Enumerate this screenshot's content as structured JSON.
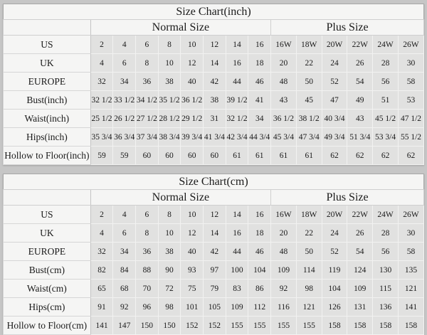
{
  "page": {
    "background": "#c6c6c6",
    "table_background": "#f5f5f4",
    "cell_background": "#e1e1e0"
  },
  "chart_data": [
    {
      "type": "table",
      "title": "Size Chart(inch)",
      "groups": [
        {
          "label": "Normal Size",
          "span": 8
        },
        {
          "label": "Plus Size",
          "span": 6
        }
      ],
      "rows": [
        {
          "label": "US",
          "values": [
            "2",
            "4",
            "6",
            "8",
            "10",
            "12",
            "14",
            "16",
            "16W",
            "18W",
            "20W",
            "22W",
            "24W",
            "26W"
          ]
        },
        {
          "label": "UK",
          "values": [
            "4",
            "6",
            "8",
            "10",
            "12",
            "14",
            "16",
            "18",
            "20",
            "22",
            "24",
            "26",
            "28",
            "30"
          ]
        },
        {
          "label": "EUROPE",
          "values": [
            "32",
            "34",
            "36",
            "38",
            "40",
            "42",
            "44",
            "46",
            "48",
            "50",
            "52",
            "54",
            "56",
            "58"
          ]
        },
        {
          "label": "Bust(inch)",
          "values": [
            "32 1/2",
            "33 1/2",
            "34 1/2",
            "35 1/2",
            "36 1/2",
            "38",
            "39 1/2",
            "41",
            "43",
            "45",
            "47",
            "49",
            "51",
            "53"
          ]
        },
        {
          "label": "Waist(inch)",
          "values": [
            "25 1/2",
            "26 1/2",
            "27 1/2",
            "28 1/2",
            "29 1/2",
            "31",
            "32 1/2",
            "34",
            "36 1/2",
            "38 1/2",
            "40 3/4",
            "43",
            "45 1/2",
            "47 1/2"
          ]
        },
        {
          "label": "Hips(inch)",
          "values": [
            "35 3/4",
            "36 3/4",
            "37 3/4",
            "38 3/4",
            "39 3/4",
            "41 3/4",
            "42 3/4",
            "44 3/4",
            "45 3/4",
            "47 3/4",
            "49 3/4",
            "51 3/4",
            "53 3/4",
            "55 1/2"
          ]
        },
        {
          "label": "Hollow to Floor(inch)",
          "values": [
            "59",
            "59",
            "60",
            "60",
            "60",
            "60",
            "61",
            "61",
            "61",
            "61",
            "62",
            "62",
            "62",
            "62"
          ]
        }
      ]
    },
    {
      "type": "table",
      "title": "Size Chart(cm)",
      "groups": [
        {
          "label": "Normal Size",
          "span": 8
        },
        {
          "label": "Plus Size",
          "span": 6
        }
      ],
      "rows": [
        {
          "label": "US",
          "values": [
            "2",
            "4",
            "6",
            "8",
            "10",
            "12",
            "14",
            "16",
            "16W",
            "18W",
            "20W",
            "22W",
            "24W",
            "26W"
          ]
        },
        {
          "label": "UK",
          "values": [
            "4",
            "6",
            "8",
            "10",
            "12",
            "14",
            "16",
            "18",
            "20",
            "22",
            "24",
            "26",
            "28",
            "30"
          ]
        },
        {
          "label": "EUROPE",
          "values": [
            "32",
            "34",
            "36",
            "38",
            "40",
            "42",
            "44",
            "46",
            "48",
            "50",
            "52",
            "54",
            "56",
            "58"
          ]
        },
        {
          "label": "Bust(cm)",
          "values": [
            "82",
            "84",
            "88",
            "90",
            "93",
            "97",
            "100",
            "104",
            "109",
            "114",
            "119",
            "124",
            "130",
            "135"
          ]
        },
        {
          "label": "Waist(cm)",
          "values": [
            "65",
            "68",
            "70",
            "72",
            "75",
            "79",
            "83",
            "86",
            "92",
            "98",
            "104",
            "109",
            "115",
            "121"
          ]
        },
        {
          "label": "Hips(cm)",
          "values": [
            "91",
            "92",
            "96",
            "98",
            "101",
            "105",
            "109",
            "112",
            "116",
            "121",
            "126",
            "131",
            "136",
            "141"
          ]
        },
        {
          "label": "Hollow to Floor(cm)",
          "values": [
            "141",
            "147",
            "150",
            "150",
            "152",
            "152",
            "155",
            "155",
            "155",
            "155",
            "158",
            "158",
            "158",
            "158"
          ]
        }
      ]
    }
  ]
}
